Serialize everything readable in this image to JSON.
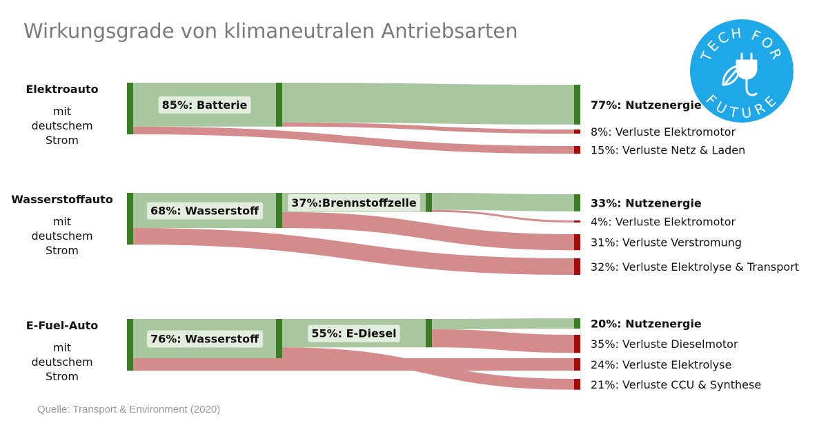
{
  "title": "Wirkungsgrade von klimaneutralen Antriebsarten",
  "source": "Quelle: Transport & Environment (2020)",
  "badge": {
    "line1": "TECH FOR",
    "line2": "FUTURE",
    "icon": "plug-leaf-icon",
    "color": "#1ea8e8"
  },
  "colors": {
    "useful_flow": "#a8c79f",
    "loss_flow": "#d48b8b",
    "node_green": "#3a7d24",
    "node_red": "#a50d0d",
    "label_bg": "#e5efe1"
  },
  "vehicles": [
    {
      "name": "Elektroauto",
      "sub": "mit deutschem Strom"
    },
    {
      "name": "Wasserstoffauto",
      "sub": "mit deutschem Strom"
    },
    {
      "name": "E-Fuel-Auto",
      "sub": "mit deutschem Strom"
    }
  ],
  "chart_data": {
    "type": "sankey",
    "unit": "%",
    "diagrams": [
      {
        "vehicle": "Elektroauto",
        "input": 100,
        "stages": [
          {
            "label": "85%: Batterie",
            "value": 85
          }
        ],
        "outputs": [
          {
            "label": "77%: Nutzenergie",
            "value": 77,
            "kind": "useful",
            "from_stage": 1
          },
          {
            "label": "8%: Verluste Elektromotor",
            "value": 8,
            "kind": "loss",
            "from_stage": 1
          },
          {
            "label": "15%: Verluste Netz & Laden",
            "value": 15,
            "kind": "loss",
            "from_stage": 0
          }
        ]
      },
      {
        "vehicle": "Wasserstoffauto",
        "input": 100,
        "stages": [
          {
            "label": "68%: Wasserstoff",
            "value": 68
          },
          {
            "label": "37%:Brennstoffzelle",
            "value": 37
          }
        ],
        "outputs": [
          {
            "label": "33%: Nutzenergie",
            "value": 33,
            "kind": "useful",
            "from_stage": 2
          },
          {
            "label": "4%: Verluste Elektromotor",
            "value": 4,
            "kind": "loss",
            "from_stage": 2
          },
          {
            "label": "31%: Verluste Verstromung",
            "value": 31,
            "kind": "loss",
            "from_stage": 1
          },
          {
            "label": "32%: Verluste Elektrolyse & Transport",
            "value": 32,
            "kind": "loss",
            "from_stage": 0
          }
        ]
      },
      {
        "vehicle": "E-Fuel-Auto",
        "input": 100,
        "stages": [
          {
            "label": "76%: Wasserstoff",
            "value": 76
          },
          {
            "label": "55%: E-Diesel",
            "value": 55
          }
        ],
        "outputs": [
          {
            "label": "20%: Nutzenergie",
            "value": 20,
            "kind": "useful",
            "from_stage": 2
          },
          {
            "label": "35%: Verluste Dieselmotor",
            "value": 35,
            "kind": "loss",
            "from_stage": 2
          },
          {
            "label": "24%: Verluste Elektrolyse",
            "value": 24,
            "kind": "loss",
            "from_stage": 0
          },
          {
            "label": "21%: Verluste CCU & Synthese",
            "value": 21,
            "kind": "loss",
            "from_stage": 1
          }
        ]
      }
    ]
  }
}
